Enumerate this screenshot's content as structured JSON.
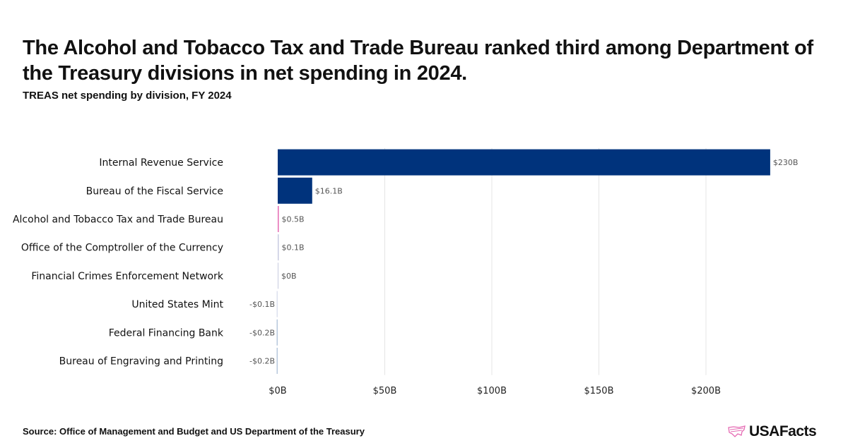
{
  "title": "The Alcohol and Tobacco Tax and Trade Bureau ranked third among Department of the Treasury divisions in net spending in 2024.",
  "subtitle": "TREAS net spending by division, FY 2024",
  "source": "Source: Office of Management and Budget and US Department of the Treasury",
  "logo_text": "USAFacts",
  "chart_data": {
    "type": "bar",
    "orientation": "horizontal",
    "title": "TREAS net spending by division, FY 2024",
    "xlabel": "",
    "ylabel": "",
    "xlim": [
      0,
      240
    ],
    "grid": true,
    "categories": [
      "Internal Revenue Service",
      "Bureau of the Fiscal Service",
      "Alcohol and Tobacco Tax and Trade Bureau",
      "Office of the Comptroller of the Currency",
      "Financial Crimes Enforcement Network",
      "United States Mint",
      "Federal Financing Bank",
      "Bureau of Engraving and Printing"
    ],
    "values": [
      230,
      16.1,
      0.5,
      0.1,
      0,
      -0.1,
      -0.2,
      -0.2
    ],
    "labels": [
      "$230B",
      "$16.1B",
      "$0.5B",
      "$0.1B",
      "$0B",
      "-$0.1B",
      "-$0.2B",
      "-$0.2B"
    ],
    "colors": [
      "#00337c",
      "#00337c",
      "#e56ab3",
      "#c8cbe0",
      "#c8cbe0",
      "#dde0ee",
      "#b7c8dc",
      "#b7c8dc"
    ],
    "xticks": [
      0,
      50,
      100,
      150,
      200
    ],
    "xtick_labels": [
      "$0B",
      "$50B",
      "$100B",
      "$150B",
      "$200B"
    ]
  }
}
